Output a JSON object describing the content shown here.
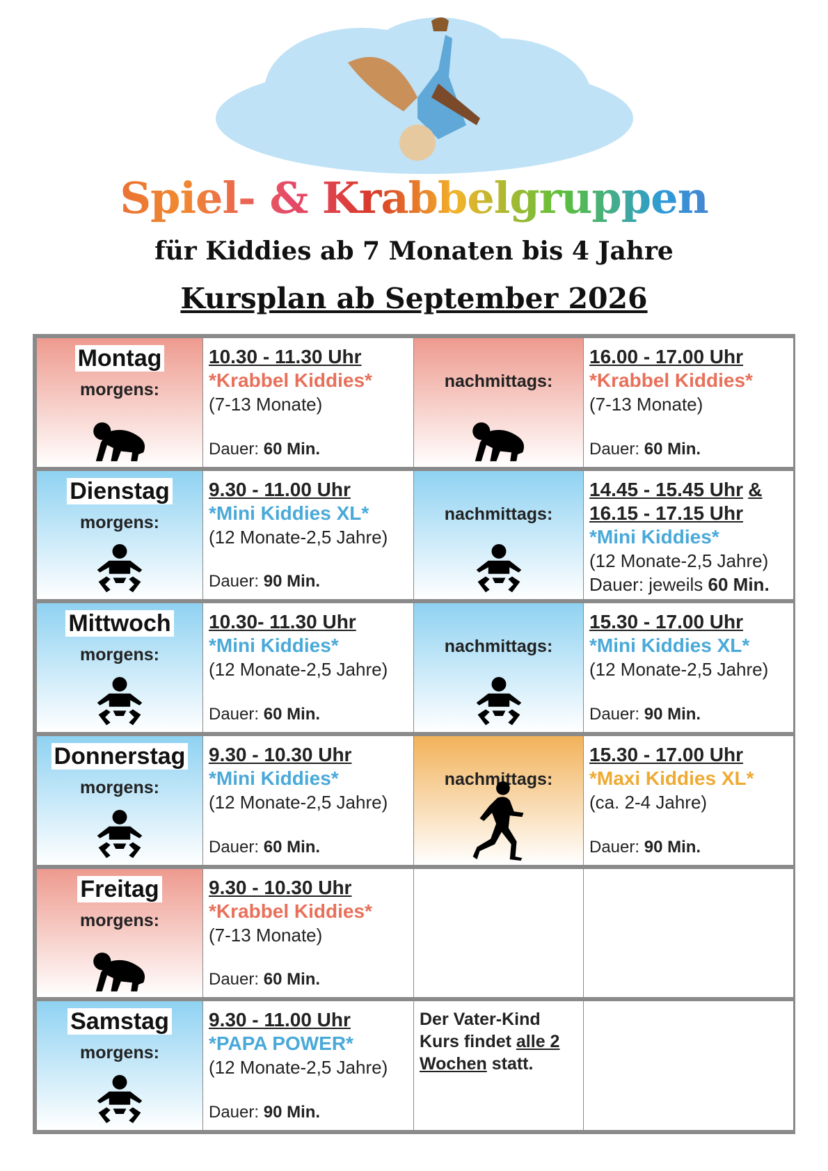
{
  "header": {
    "title": "Spiel- & Krabbelgruppen",
    "subtitle": "für Kiddies ab 7 Monaten bis 4 Jahre",
    "plan_title": "Kursplan ab September 2026"
  },
  "table": {
    "rows": [
      {
        "day": "Montag",
        "period": "morgens:",
        "morning": {
          "time": "10.30 - 11.30 Uhr",
          "course": "*Krabbel Kiddies*",
          "age": "(7-13 Monate)",
          "duration_label": "Dauer:",
          "duration": "60 Min."
        },
        "afternoon_label": "nachmittags:",
        "afternoon": {
          "time": "16.00 - 17.00 Uhr",
          "course": "*Krabbel Kiddies*",
          "age": "(7-13 Monate)",
          "duration_label": "Dauer:",
          "duration": "60 Min."
        }
      },
      {
        "day": "Dienstag",
        "period": "morgens:",
        "morning": {
          "time": "9.30 - 11.00 Uhr",
          "course": "*Mini Kiddies XL*",
          "age": "(12 Monate-2,5 Jahre)",
          "duration_label": "Dauer:",
          "duration": "90 Min."
        },
        "afternoon_label": "nachmittags:",
        "afternoon": {
          "time": "14.45 - 15.45 Uhr",
          "connector": "&",
          "time2": "16.15 - 17.15 Uhr",
          "course": "*Mini Kiddies*",
          "age": "(12 Monate-2,5 Jahre)",
          "duration_label": "Dauer: jeweils",
          "duration": "60 Min."
        }
      },
      {
        "day": "Mittwoch",
        "period": "morgens:",
        "morning": {
          "time": "10.30- 11.30 Uhr",
          "course": "*Mini Kiddies*",
          "age": "(12 Monate-2,5 Jahre)",
          "duration_label": "Dauer:",
          "duration": "60 Min."
        },
        "afternoon_label": "nachmittags:",
        "afternoon": {
          "time": "15.30 - 17.00 Uhr",
          "course": "*Mini Kiddies XL*",
          "age": "(12 Monate-2,5 Jahre)",
          "duration_label": "Dauer:",
          "duration": "90 Min."
        }
      },
      {
        "day": "Donnerstag",
        "period": "morgens:",
        "morning": {
          "time": "9.30 - 10.30 Uhr",
          "course": "*Mini Kiddies*",
          "age": "(12 Monate-2,5 Jahre)",
          "duration_label": "Dauer:",
          "duration": "60 Min."
        },
        "afternoon_label": "nachmittags:",
        "afternoon": {
          "time": "15.30 - 17.00 Uhr",
          "course": "*Maxi Kiddies XL*",
          "age": "(ca. 2-4 Jahre)",
          "duration_label": "Dauer:",
          "duration": "90 Min."
        }
      },
      {
        "day": "Freitag",
        "period": "morgens:",
        "morning": {
          "time": "9.30 - 10.30 Uhr",
          "course": "*Krabbel Kiddies*",
          "age": "(7-13 Monate)",
          "duration_label": "Dauer:",
          "duration": "60 Min."
        }
      },
      {
        "day": "Samstag",
        "period": "morgens:",
        "morning": {
          "time": "9.30 - 11.00 Uhr",
          "course": "*PAPA POWER*",
          "age": "(12 Monate-2,5 Jahre)",
          "duration_label": "Dauer:",
          "duration": "90 Min."
        },
        "note": [
          "Der Vater-Kind Kurs findet",
          "alle 2 Wochen",
          "statt."
        ]
      }
    ]
  }
}
